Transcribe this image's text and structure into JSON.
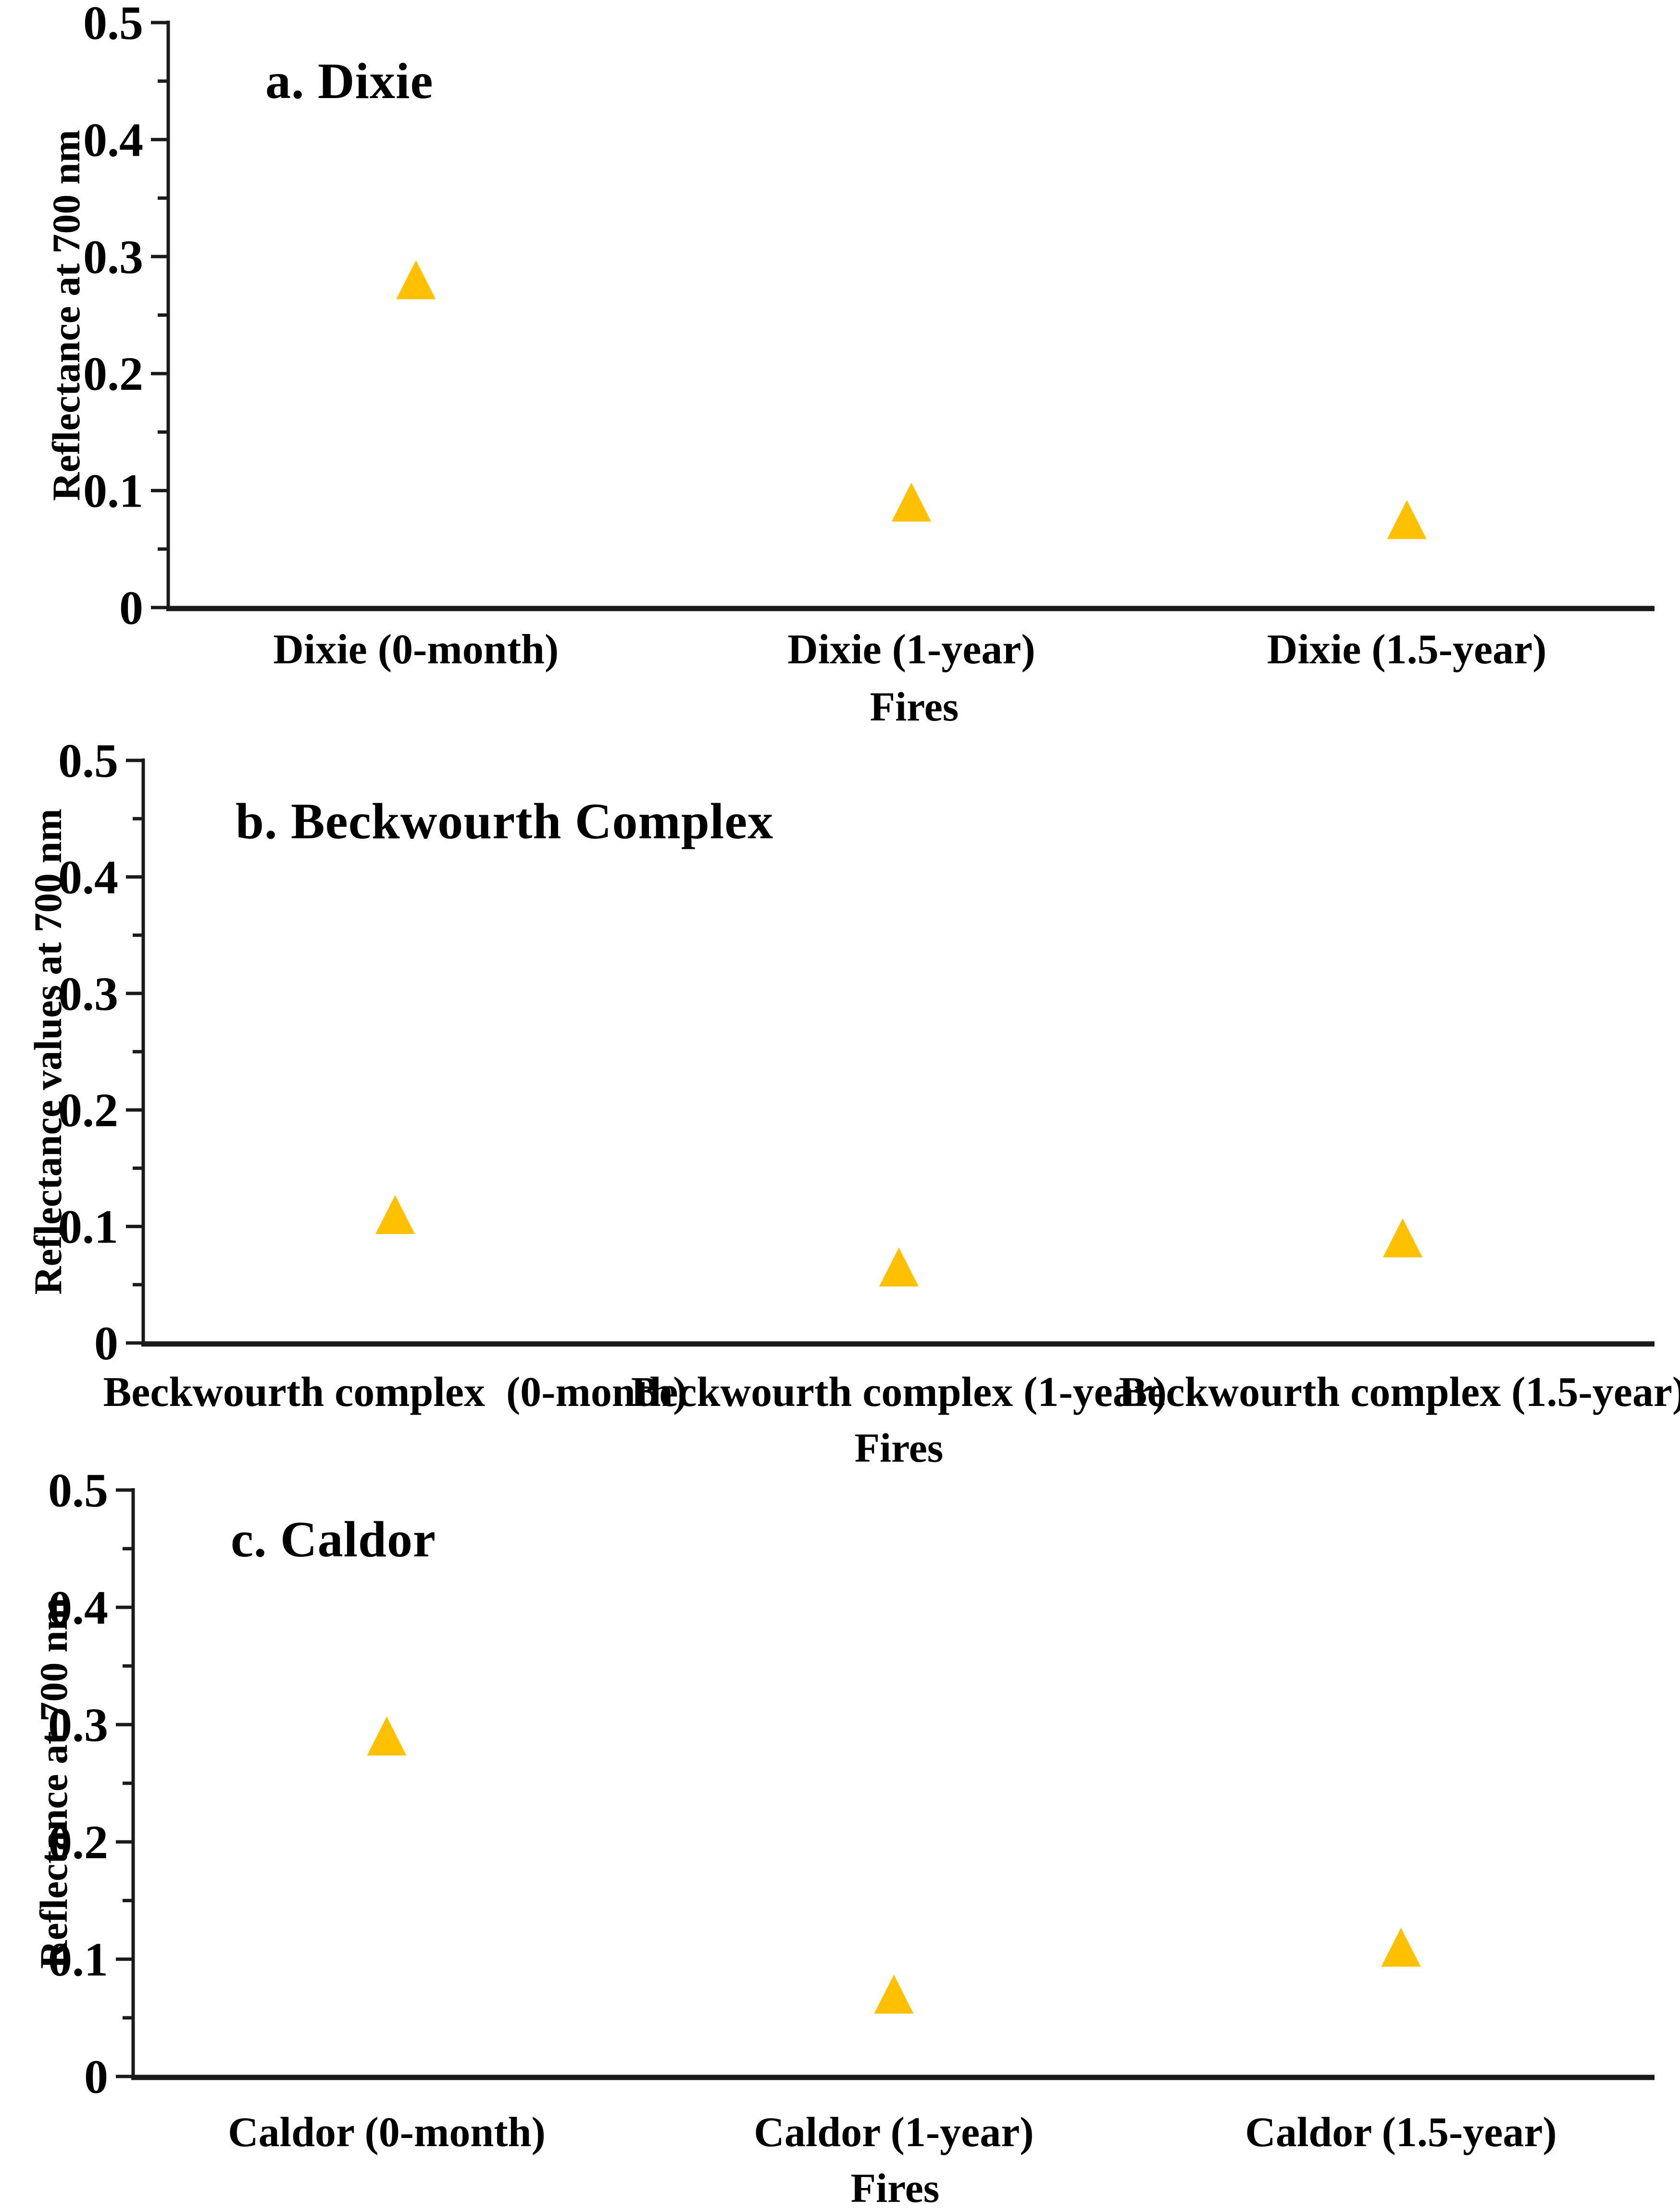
{
  "figure": {
    "background": "#ffffff",
    "axis_color": "#1a1a1a",
    "marker_color": "#FFC000",
    "marker_shape": "triangle-up"
  },
  "chart_data": [
    {
      "type": "scatter",
      "panel_label": "a. Dixie",
      "ylabel": "Reflectance at 700 nm",
      "xlabel": "Fires",
      "categories": [
        "Dixie (0-month)",
        "Dixie (1-year)",
        "Dixie (1.5-year)"
      ],
      "values": [
        0.28,
        0.09,
        0.075
      ],
      "ylim": [
        0,
        0.5
      ],
      "ytick_interval": 0.1,
      "ytick_minor_interval": 0.05,
      "ytick_labels": [
        "0",
        "0.1",
        "0.2",
        "0.3",
        "0.4",
        "0.5"
      ],
      "grid": false,
      "legend": null
    },
    {
      "type": "scatter",
      "panel_label": "b. Beckwourth Complex",
      "ylabel": "Reflectance values at 700 nm",
      "xlabel": "Fires",
      "categories": [
        "Beckwourth complex  (0-month)",
        "Beckwourth complex (1-year)",
        "Beckwourth complex (1.5-year)"
      ],
      "values": [
        0.11,
        0.065,
        0.09
      ],
      "ylim": [
        0,
        0.5
      ],
      "ytick_interval": 0.1,
      "ytick_minor_interval": 0.05,
      "ytick_labels": [
        "0",
        "0.1",
        "0.2",
        "0.3",
        "0.4",
        "0.5"
      ],
      "grid": false,
      "legend": null
    },
    {
      "type": "scatter",
      "panel_label": "c. Caldor",
      "ylabel": "Reflectance at 700 nm",
      "xlabel": "Fires",
      "categories": [
        "Caldor (0-month)",
        "Caldor (1-year)",
        "Caldor (1.5-year)"
      ],
      "values": [
        0.29,
        0.07,
        0.11
      ],
      "ylim": [
        0,
        0.5
      ],
      "ytick_interval": 0.1,
      "ytick_minor_interval": 0.05,
      "ytick_labels": [
        "0",
        "0.1",
        "0.2",
        "0.3",
        "0.4",
        "0.5"
      ],
      "grid": false,
      "legend": null
    }
  ]
}
